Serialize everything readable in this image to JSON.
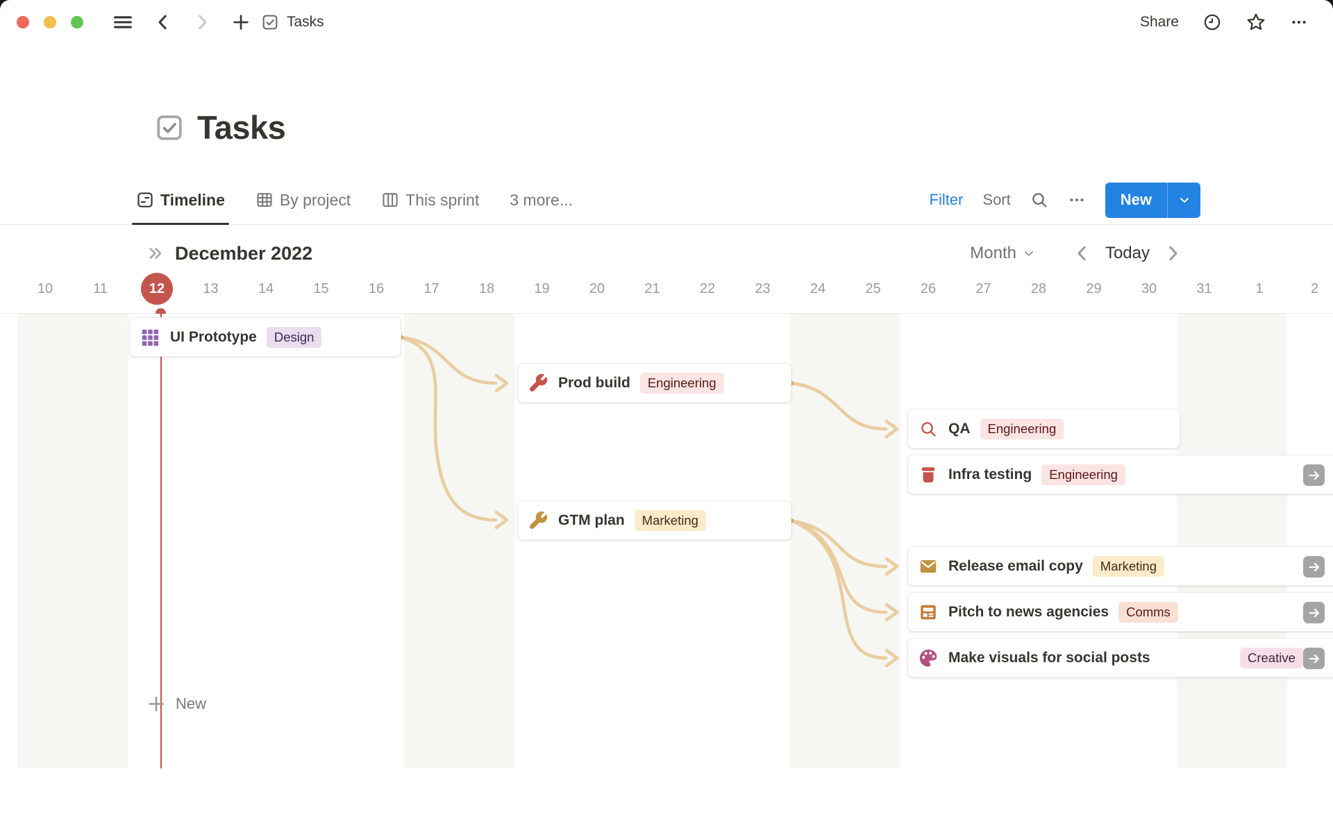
{
  "window": {
    "traffic_lights": [
      "#EC6A5D",
      "#F4BF4F",
      "#61C554"
    ],
    "doc_title": "Tasks",
    "share_label": "Share"
  },
  "page": {
    "title": "Tasks"
  },
  "view_tabs": {
    "tabs": [
      {
        "label": "Timeline",
        "icon": "timeline-icon",
        "active": true
      },
      {
        "label": "By project",
        "icon": "table-icon",
        "active": false
      },
      {
        "label": "This sprint",
        "icon": "columns-icon",
        "active": false
      }
    ],
    "more_label": "3 more...",
    "filter_label": "Filter",
    "sort_label": "Sort",
    "new_label": "New"
  },
  "timeline": {
    "period_title": "December 2022",
    "zoom_label": "Month",
    "today_label": "Today",
    "days": [
      "10",
      "11",
      "12",
      "13",
      "14",
      "15",
      "16",
      "17",
      "18",
      "19",
      "20",
      "21",
      "22",
      "23",
      "24",
      "25",
      "26",
      "27",
      "28",
      "29",
      "30",
      "31",
      "1",
      "2"
    ],
    "today_day": "12",
    "weekend_day_indices": [
      0,
      1,
      7,
      8,
      14,
      15,
      21,
      22
    ],
    "new_label": "New",
    "colors": {
      "accent_red": "#C4554D",
      "today_line": "#BF5048",
      "weekend_band": "#F6F6F3",
      "connector": "#E9CDA0",
      "connector_dot": "#DFA85A",
      "blue_accent": "#2383E2"
    }
  },
  "cards": [
    {
      "id": "ui-prototype",
      "title": "UI Prototype",
      "icon": "grid-icon",
      "icon_color": "#9065B0",
      "tag": {
        "label": "Design",
        "bg": "#E8DEEE",
        "fg": "#412454"
      }
    },
    {
      "id": "prod-build",
      "title": "Prod build",
      "icon": "wrench-icon",
      "icon_color": "#C4554D",
      "tag": {
        "label": "Engineering",
        "bg": "#FBE4E4",
        "fg": "#5D1715"
      }
    },
    {
      "id": "qa",
      "title": "QA",
      "icon": "search-icon",
      "icon_color": "#C4554D",
      "tag": {
        "label": "Engineering",
        "bg": "#FBE4E4",
        "fg": "#5D1715"
      }
    },
    {
      "id": "infra-testing",
      "title": "Infra testing",
      "icon": "book-icon",
      "icon_color": "#C4554D",
      "tag": {
        "label": "Engineering",
        "bg": "#FBE4E4",
        "fg": "#5D1715"
      },
      "overflow_arrow": true
    },
    {
      "id": "gtm-plan",
      "title": "GTM plan",
      "icon": "wrench-icon",
      "icon_color": "#C29243",
      "tag": {
        "label": "Marketing",
        "bg": "#FAEBC9",
        "fg": "#402C1B"
      }
    },
    {
      "id": "release-email-copy",
      "title": "Release email copy",
      "icon": "mail-icon",
      "icon_color": "#C29243",
      "tag": {
        "label": "Marketing",
        "bg": "#FAEBC9",
        "fg": "#402C1B"
      },
      "overflow_arrow": true
    },
    {
      "id": "pitch-to-news-agencies",
      "title": "Pitch to news agencies",
      "icon": "news-icon",
      "icon_color": "#C77B33",
      "tag": {
        "label": "Comms",
        "bg": "#F8E0D3",
        "fg": "#5D1715"
      },
      "overflow_arrow": true
    },
    {
      "id": "make-visuals-for-social-posts",
      "title": "Make visuals for social posts",
      "icon": "palette-icon",
      "icon_color": "#B2527C",
      "tag": {
        "label": "Creative",
        "bg": "#F5E0E9",
        "fg": "#4C2337"
      },
      "overflow_arrow": true
    }
  ],
  "dependencies": [
    {
      "from": "ui-prototype",
      "to": "prod-build"
    },
    {
      "from": "ui-prototype",
      "to": "gtm-plan"
    },
    {
      "from": "prod-build",
      "to": "qa"
    },
    {
      "from": "gtm-plan",
      "to": "release-email-copy"
    },
    {
      "from": "gtm-plan",
      "to": "pitch-to-news-agencies"
    },
    {
      "from": "gtm-plan",
      "to": "make-visuals-for-social-posts"
    }
  ]
}
